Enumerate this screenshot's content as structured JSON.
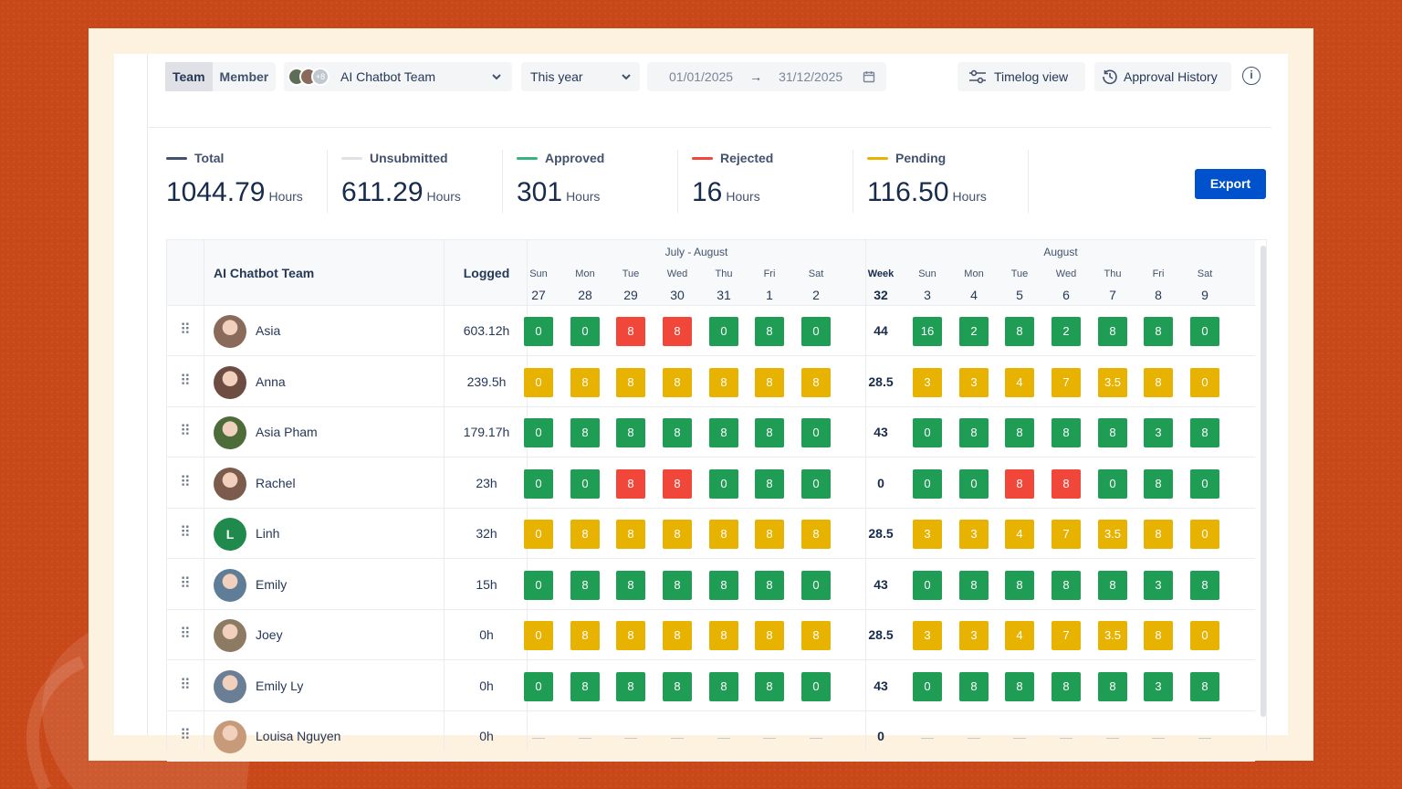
{
  "toolbar": {
    "view_tabs": [
      "Team",
      "Member"
    ],
    "avatars_more": "+8",
    "team": "AI Chatbot Team",
    "period": "This year",
    "date_from": "01/01/2025",
    "date_to": "31/12/2025",
    "timelog_view": "Timelog view",
    "approval_history": "Approval History"
  },
  "stats": [
    {
      "label": "Total",
      "value": "1044.79",
      "unit": "Hours",
      "color": "#42526e"
    },
    {
      "label": "Unsubmitted",
      "value": "611.29",
      "unit": "Hours",
      "color": "#dfe1e6"
    },
    {
      "label": "Approved",
      "value": "301",
      "unit": "Hours",
      "color": "#36b37e"
    },
    {
      "label": "Rejected",
      "value": "16",
      "unit": "Hours",
      "color": "#f0473a"
    },
    {
      "label": "Pending",
      "value": "116.50",
      "unit": "Hours",
      "color": "#e8b200"
    }
  ],
  "export_label": "Export",
  "grid": {
    "team_title": "AI Chatbot Team",
    "logged_title": "Logged",
    "groups": [
      "July - August",
      "August"
    ],
    "week_label": "Week",
    "week_number": "32",
    "days1": [
      {
        "d": "Sun",
        "n": "27"
      },
      {
        "d": "Mon",
        "n": "28"
      },
      {
        "d": "Tue",
        "n": "29"
      },
      {
        "d": "Wed",
        "n": "30"
      },
      {
        "d": "Thu",
        "n": "31"
      },
      {
        "d": "Fri",
        "n": "1"
      },
      {
        "d": "Sat",
        "n": "2"
      }
    ],
    "days2": [
      {
        "d": "Sun",
        "n": "3"
      },
      {
        "d": "Mon",
        "n": "4"
      },
      {
        "d": "Tue",
        "n": "5"
      },
      {
        "d": "Wed",
        "n": "6"
      },
      {
        "d": "Thu",
        "n": "7"
      },
      {
        "d": "Fri",
        "n": "8"
      },
      {
        "d": "Sat",
        "n": "9"
      }
    ],
    "rows": [
      {
        "name": "Asia",
        "logged": "603.12h",
        "avatar": "#8a6a5a",
        "week": "44",
        "w1": [
          [
            "0",
            "green"
          ],
          [
            "0",
            "green"
          ],
          [
            "8",
            "red"
          ],
          [
            "8",
            "red"
          ],
          [
            "0",
            "green"
          ],
          [
            "8",
            "green"
          ],
          [
            "0",
            "green"
          ]
        ],
        "w2": [
          [
            "16",
            "green"
          ],
          [
            "2",
            "green"
          ],
          [
            "8",
            "green"
          ],
          [
            "2",
            "green"
          ],
          [
            "8",
            "green"
          ],
          [
            "8",
            "green"
          ],
          [
            "0",
            "green"
          ]
        ]
      },
      {
        "name": "Anna",
        "logged": "239.5h",
        "avatar": "#6d4c41",
        "week": "28.5",
        "w1": [
          [
            "0",
            "yellow"
          ],
          [
            "8",
            "yellow"
          ],
          [
            "8",
            "yellow"
          ],
          [
            "8",
            "yellow"
          ],
          [
            "8",
            "yellow"
          ],
          [
            "8",
            "yellow"
          ],
          [
            "8",
            "yellow"
          ]
        ],
        "w2": [
          [
            "3",
            "yellow"
          ],
          [
            "3",
            "yellow"
          ],
          [
            "4",
            "yellow"
          ],
          [
            "7",
            "yellow"
          ],
          [
            "3.5",
            "yellow"
          ],
          [
            "8",
            "yellow"
          ],
          [
            "0",
            "yellow"
          ]
        ]
      },
      {
        "name": "Asia Pham",
        "logged": "179.17h",
        "avatar": "#4e6b3a",
        "week": "43",
        "w1": [
          [
            "0",
            "green"
          ],
          [
            "8",
            "green"
          ],
          [
            "8",
            "green"
          ],
          [
            "8",
            "green"
          ],
          [
            "8",
            "green"
          ],
          [
            "8",
            "green"
          ],
          [
            "0",
            "green"
          ]
        ],
        "w2": [
          [
            "0",
            "green"
          ],
          [
            "8",
            "green"
          ],
          [
            "8",
            "green"
          ],
          [
            "8",
            "green"
          ],
          [
            "8",
            "green"
          ],
          [
            "3",
            "green"
          ],
          [
            "8",
            "green"
          ]
        ]
      },
      {
        "name": "Rachel",
        "logged": "23h",
        "avatar": "#7b5b4b",
        "week": "0",
        "w1": [
          [
            "0",
            "green"
          ],
          [
            "0",
            "green"
          ],
          [
            "8",
            "red"
          ],
          [
            "8",
            "red"
          ],
          [
            "0",
            "green"
          ],
          [
            "8",
            "green"
          ],
          [
            "0",
            "green"
          ]
        ],
        "w2": [
          [
            "0",
            "green"
          ],
          [
            "0",
            "green"
          ],
          [
            "8",
            "red"
          ],
          [
            "8",
            "red"
          ],
          [
            "0",
            "green"
          ],
          [
            "8",
            "green"
          ],
          [
            "0",
            "green"
          ]
        ]
      },
      {
        "name": "Linh",
        "logged": "32h",
        "avatar_initial": "L",
        "week": "28.5",
        "w1": [
          [
            "0",
            "yellow"
          ],
          [
            "8",
            "yellow"
          ],
          [
            "8",
            "yellow"
          ],
          [
            "8",
            "yellow"
          ],
          [
            "8",
            "yellow"
          ],
          [
            "8",
            "yellow"
          ],
          [
            "8",
            "yellow"
          ]
        ],
        "w2": [
          [
            "3",
            "yellow"
          ],
          [
            "3",
            "yellow"
          ],
          [
            "4",
            "yellow"
          ],
          [
            "7",
            "yellow"
          ],
          [
            "3.5",
            "yellow"
          ],
          [
            "8",
            "yellow"
          ],
          [
            "0",
            "yellow"
          ]
        ]
      },
      {
        "name": "Emily",
        "logged": "15h",
        "avatar": "#5f7d96",
        "week": "43",
        "w1": [
          [
            "0",
            "green"
          ],
          [
            "8",
            "green"
          ],
          [
            "8",
            "green"
          ],
          [
            "8",
            "green"
          ],
          [
            "8",
            "green"
          ],
          [
            "8",
            "green"
          ],
          [
            "0",
            "green"
          ]
        ],
        "w2": [
          [
            "0",
            "green"
          ],
          [
            "8",
            "green"
          ],
          [
            "8",
            "green"
          ],
          [
            "8",
            "green"
          ],
          [
            "8",
            "green"
          ],
          [
            "3",
            "green"
          ],
          [
            "8",
            "green"
          ]
        ]
      },
      {
        "name": "Joey",
        "logged": "0h",
        "avatar": "#8c7a63",
        "week": "28.5",
        "w1": [
          [
            "0",
            "yellow"
          ],
          [
            "8",
            "yellow"
          ],
          [
            "8",
            "yellow"
          ],
          [
            "8",
            "yellow"
          ],
          [
            "8",
            "yellow"
          ],
          [
            "8",
            "yellow"
          ],
          [
            "8",
            "yellow"
          ]
        ],
        "w2": [
          [
            "3",
            "yellow"
          ],
          [
            "3",
            "yellow"
          ],
          [
            "4",
            "yellow"
          ],
          [
            "7",
            "yellow"
          ],
          [
            "3.5",
            "yellow"
          ],
          [
            "8",
            "yellow"
          ],
          [
            "0",
            "yellow"
          ]
        ]
      },
      {
        "name": "Emily Ly",
        "logged": "0h",
        "avatar": "#6a7f95",
        "week": "43",
        "w1": [
          [
            "0",
            "green"
          ],
          [
            "8",
            "green"
          ],
          [
            "8",
            "green"
          ],
          [
            "8",
            "green"
          ],
          [
            "8",
            "green"
          ],
          [
            "8",
            "green"
          ],
          [
            "0",
            "green"
          ]
        ],
        "w2": [
          [
            "0",
            "green"
          ],
          [
            "8",
            "green"
          ],
          [
            "8",
            "green"
          ],
          [
            "8",
            "green"
          ],
          [
            "8",
            "green"
          ],
          [
            "3",
            "green"
          ],
          [
            "8",
            "green"
          ]
        ]
      },
      {
        "name": "Louisa Nguyen",
        "logged": "0h",
        "avatar": "#c79a7a",
        "week": "0",
        "w1": [
          [
            "—",
            "empty"
          ],
          [
            "—",
            "empty"
          ],
          [
            "—",
            "empty"
          ],
          [
            "—",
            "empty"
          ],
          [
            "—",
            "empty"
          ],
          [
            "—",
            "empty"
          ],
          [
            "—",
            "empty"
          ]
        ],
        "w2": [
          [
            "—",
            "empty"
          ],
          [
            "—",
            "empty"
          ],
          [
            "—",
            "empty"
          ],
          [
            "—",
            "empty"
          ],
          [
            "—",
            "empty"
          ],
          [
            "—",
            "empty"
          ],
          [
            "—",
            "empty"
          ]
        ]
      }
    ]
  }
}
